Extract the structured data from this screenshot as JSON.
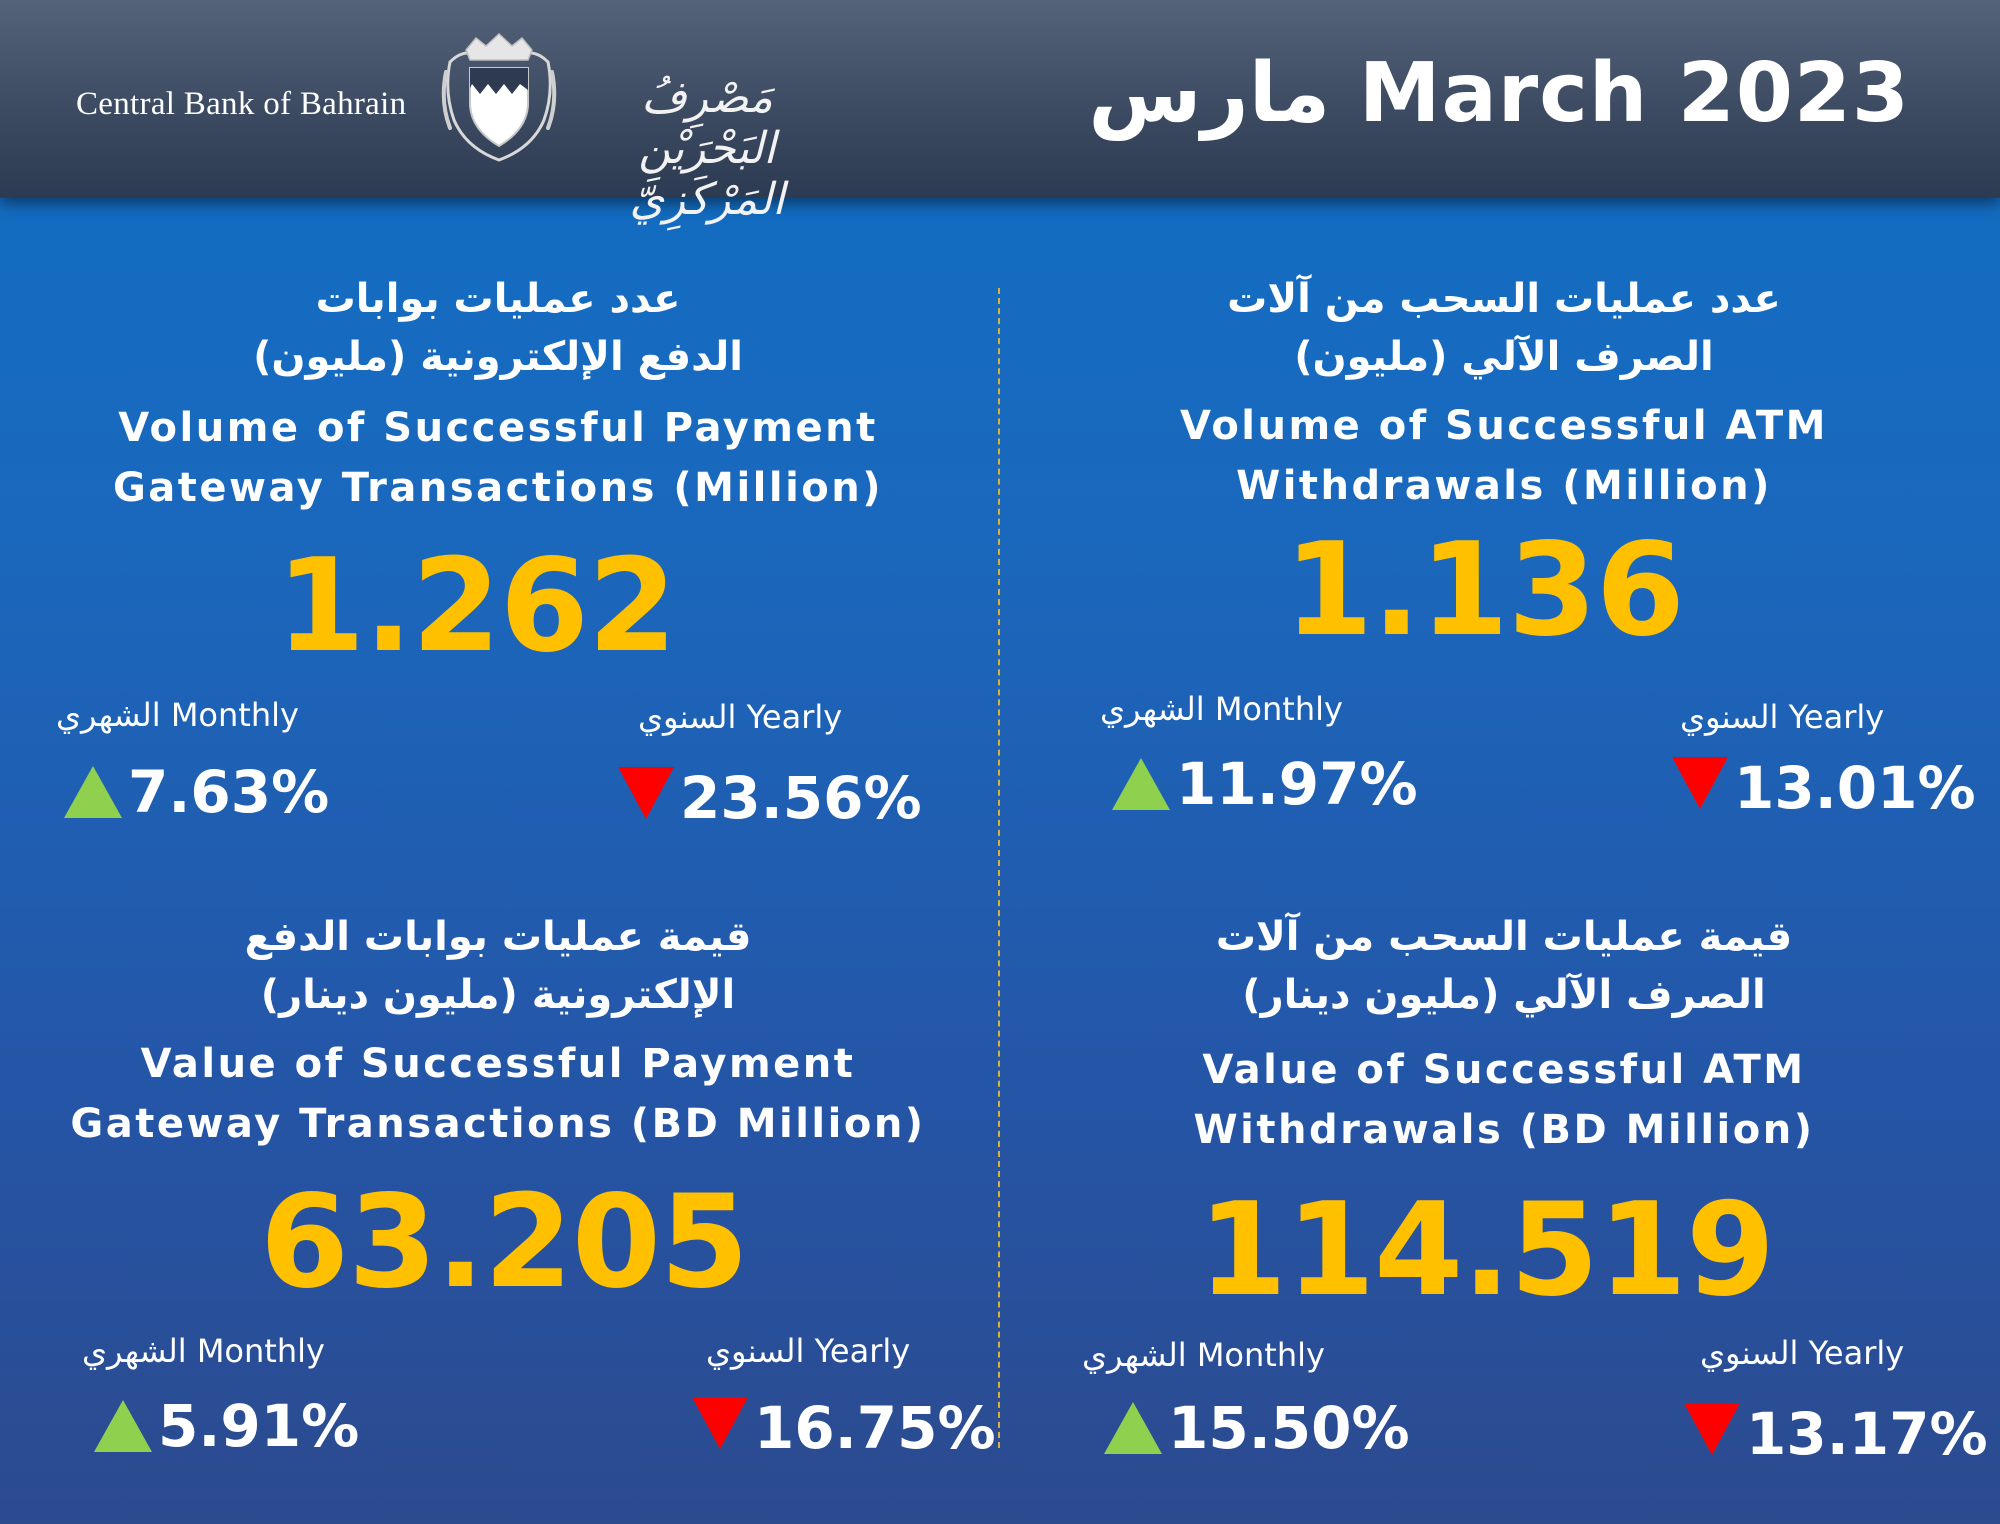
{
  "header": {
    "brand_en": "Central Bank of Bahrain",
    "brand_ar": "مَصْرِفُ البَحْرَيْنِ المَرْكَزِيّ",
    "title": "مارس March 2023"
  },
  "colors": {
    "accent": "#ffc000",
    "up": "#8fd14f",
    "down": "#ff0000",
    "divider": "#d9b23a"
  },
  "panels": {
    "pg_volume": {
      "title_ar_1": "عدد عمليات بوابات",
      "title_ar_2": "الدفع الإلكترونية (مليون)",
      "title_en_1": "Volume of Successful Payment",
      "title_en_2": "Gateway Transactions (Million)",
      "value": "1.262",
      "monthly_label_ar": "الشهري",
      "monthly_label_en": "Monthly",
      "monthly_value": "7.63%",
      "monthly_direction": "up",
      "yearly_label_ar": "السنوي",
      "yearly_label_en": "Yearly",
      "yearly_value": "23.56%",
      "yearly_direction": "down"
    },
    "atm_volume": {
      "title_ar_1": "عدد عمليات السحب من آلات",
      "title_ar_2": "الصرف الآلي (مليون)",
      "title_en_1": "Volume of  Successful ATM",
      "title_en_2": "Withdrawals (Million)",
      "value": "1.136",
      "monthly_label_ar": "الشهري",
      "monthly_label_en": "Monthly",
      "monthly_value": "11.97%",
      "monthly_direction": "up",
      "yearly_label_ar": "السنوي",
      "yearly_label_en": "Yearly",
      "yearly_value": "13.01%",
      "yearly_direction": "down"
    },
    "pg_value": {
      "title_ar_1": "قيمة عمليات بوابات الدفع",
      "title_ar_2": "الإلكترونية (مليون دينار)",
      "title_en_1": "Value of Successful Payment",
      "title_en_2": "Gateway Transactions (BD Million)",
      "value": "63.205",
      "monthly_label_ar": "الشهري",
      "monthly_label_en": "Monthly",
      "monthly_value": "5.91%",
      "monthly_direction": "up",
      "yearly_label_ar": "السنوي",
      "yearly_label_en": "Yearly",
      "yearly_value": "16.75%",
      "yearly_direction": "down"
    },
    "atm_value": {
      "title_ar_1": "قيمة عمليات السحب من آلات",
      "title_ar_2": "الصرف الآلي (مليون دينار)",
      "title_en_1": "Value of Successful ATM",
      "title_en_2": "Withdrawals (BD Million)",
      "value": "114.519",
      "monthly_label_ar": "الشهري",
      "monthly_label_en": "Monthly",
      "monthly_value": "15.50%",
      "monthly_direction": "up",
      "yearly_label_ar": "السنوي",
      "yearly_label_en": "Yearly",
      "yearly_value": "13.17%",
      "yearly_direction": "down"
    }
  }
}
